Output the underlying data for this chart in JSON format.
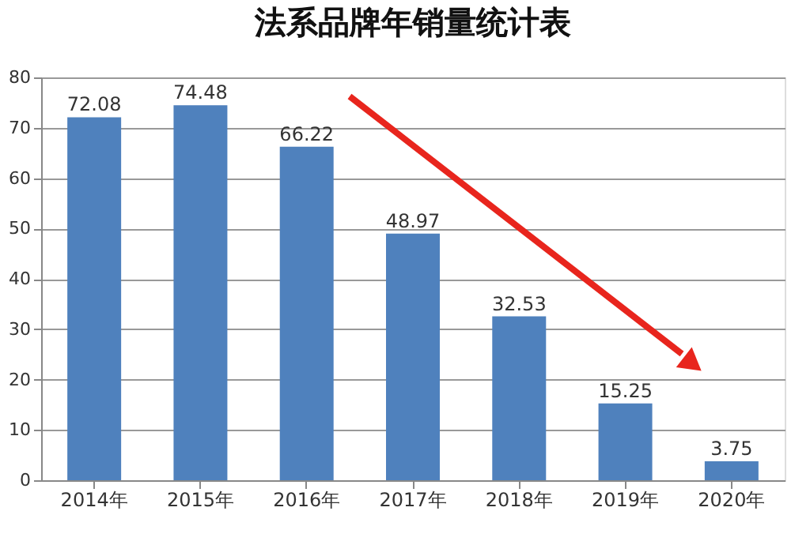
{
  "chart_data": {
    "type": "bar",
    "title": "法系品牌年销量统计表",
    "categories": [
      "2014年",
      "2015年",
      "2016年",
      "2017年",
      "2018年",
      "2019年",
      "2020年"
    ],
    "values": [
      72.08,
      74.48,
      66.22,
      48.97,
      32.53,
      15.25,
      3.75
    ],
    "color": "#4f81bd",
    "ylim": [
      0,
      80
    ],
    "yticks": [
      0,
      10,
      20,
      30,
      40,
      50,
      60,
      70,
      80
    ],
    "grid": "y",
    "data_labels": true
  }
}
